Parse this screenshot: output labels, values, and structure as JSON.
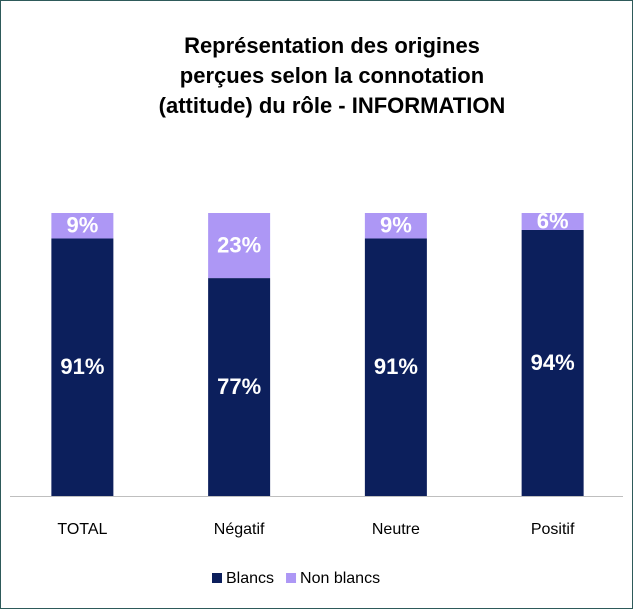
{
  "chart_data": {
    "type": "stacked_bar",
    "title": [
      "Représentation des origines",
      "perçues selon la connotation",
      "(attitude) du rôle - INFORMATION"
    ],
    "categories": [
      "TOTAL",
      "Négatif",
      "Neutre",
      "Positif"
    ],
    "series": [
      {
        "name": "Blancs",
        "color": "#0c1f5c",
        "values": [
          91,
          77,
          91,
          94
        ],
        "value_labels": [
          "91%",
          "77%",
          "91%",
          "94%"
        ]
      },
      {
        "name": "Non blancs",
        "color": "#ad97f5",
        "values": [
          9,
          23,
          9,
          6
        ],
        "value_labels": [
          "9%",
          "23%",
          "9%",
          "6%"
        ]
      }
    ],
    "ylim": [
      0,
      100
    ],
    "legend": "bottom"
  }
}
